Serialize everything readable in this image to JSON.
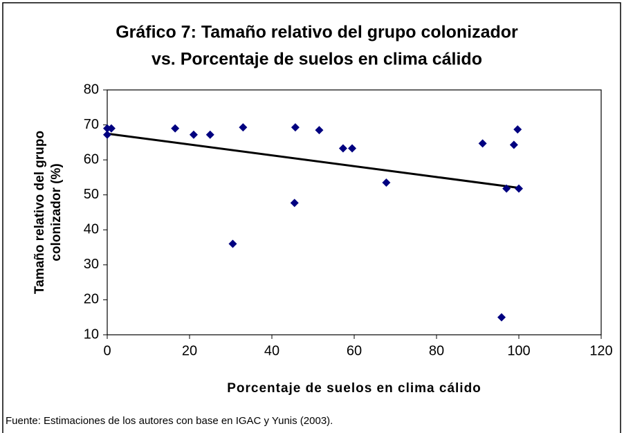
{
  "chart_data": {
    "type": "scatter",
    "title": [
      "Gráfico 7: Tamaño relativo del grupo colonizador",
      "vs. Porcentaje de suelos en clima cálido"
    ],
    "x_label": "Porcentaje de suelos en clima cálido",
    "y_label": [
      "Tamaño relativo del grupo",
      "colonizador (%)"
    ],
    "note": "Fuente: Estimaciones de los autores con base en IGAC y Yunis (2003).",
    "color": "#000080",
    "x": [
      0,
      0,
      1,
      16.5,
      21,
      25,
      30.5,
      33,
      45.5,
      45.7,
      51.5,
      57.3,
      59.5,
      67.8,
      91.2,
      95.8,
      97,
      98.8,
      99.7,
      100
    ],
    "values": [
      69,
      67.2,
      69,
      69,
      67.2,
      67.2,
      36,
      69.3,
      47.7,
      69.3,
      68.5,
      63.3,
      63.3,
      53.5,
      64.7,
      15,
      51.8,
      64.3,
      68.7,
      51.8
    ],
    "trendline": {
      "x": [
        0,
        100
      ],
      "values": [
        67.5,
        52
      ],
      "color": "#000000"
    },
    "xlim": [
      0,
      120
    ],
    "xticks": [
      0,
      20,
      40,
      60,
      80,
      100,
      120
    ],
    "ylim": [
      10,
      80
    ],
    "yticks": [
      10,
      20,
      30,
      40,
      50,
      60,
      70,
      80
    ]
  }
}
